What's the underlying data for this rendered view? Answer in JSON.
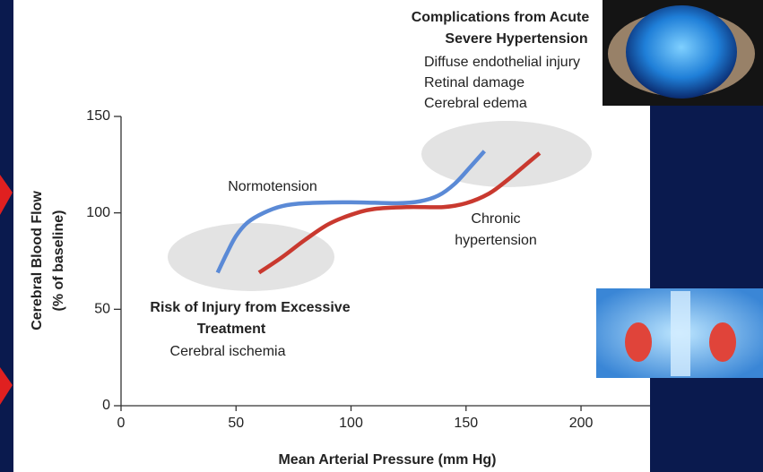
{
  "chart_data": {
    "type": "line",
    "x_label": "Mean Arterial Pressure (mm Hg)",
    "y_label": [
      "Cerebral Blood Flow",
      "(% of baseline)"
    ],
    "xlim": [
      0,
      230
    ],
    "ylim": [
      0,
      150
    ],
    "xticks": [
      0,
      50,
      100,
      150,
      200
    ],
    "yticks": [
      0,
      50,
      100,
      150
    ],
    "grid": false,
    "series": [
      {
        "name": "Normotension",
        "color": "#5b8ad6",
        "x": [
          42,
          46,
          50,
          55,
          62,
          70,
          80,
          100,
          120,
          130,
          138,
          145,
          152,
          158
        ],
        "values": [
          69,
          79,
          88,
          95,
          100,
          103.5,
          105,
          105.5,
          105,
          106,
          109,
          115,
          124,
          132
        ]
      },
      {
        "name": [
          "Chronic",
          "hypertension"
        ],
        "color": "#c9392f",
        "x": [
          60,
          70,
          80,
          90,
          100,
          110,
          125,
          140,
          150,
          160,
          168,
          175,
          182
        ],
        "values": [
          69,
          77,
          86,
          94,
          99,
          102,
          103,
          103,
          105,
          110,
          117,
          124,
          131
        ]
      }
    ],
    "annotations": [
      {
        "title": [
          "Complications from Acute",
          "Severe Hypertension"
        ],
        "items": [
          "Diffuse endothelial injury",
          "Retinal damage",
          "Cerebral edema"
        ]
      },
      {
        "title": [
          "Risk of Injury from Excessive",
          "Treatment"
        ],
        "items": [
          "Cerebral ischemia"
        ]
      }
    ]
  }
}
